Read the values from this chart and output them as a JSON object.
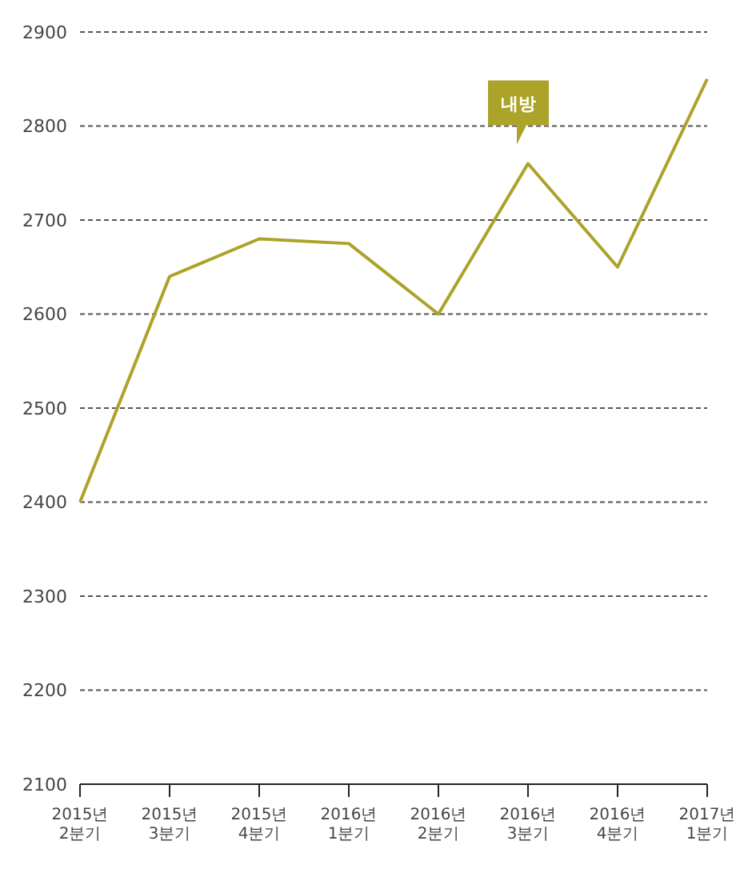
{
  "chart_data": {
    "type": "line",
    "categories": [
      "2015년 2분기",
      "2015년 3분기",
      "2015년 4분기",
      "2016년 1분기",
      "2016년 2분기",
      "2016년 3분기",
      "2016년 4분기",
      "2017년 1분기"
    ],
    "values": [
      2400,
      2640,
      2680,
      2675,
      2600,
      2760,
      2650,
      2850
    ],
    "color": "#aca32a",
    "ylim": [
      2100,
      2900
    ],
    "yticks": [
      2100,
      2200,
      2300,
      2400,
      2500,
      2600,
      2700,
      2800,
      2900
    ],
    "grid": "y",
    "marker": "none",
    "line_style": "solid",
    "annotations": [
      {
        "text": "내방",
        "x": "2016년 3분기",
        "y": 2760
      }
    ]
  }
}
